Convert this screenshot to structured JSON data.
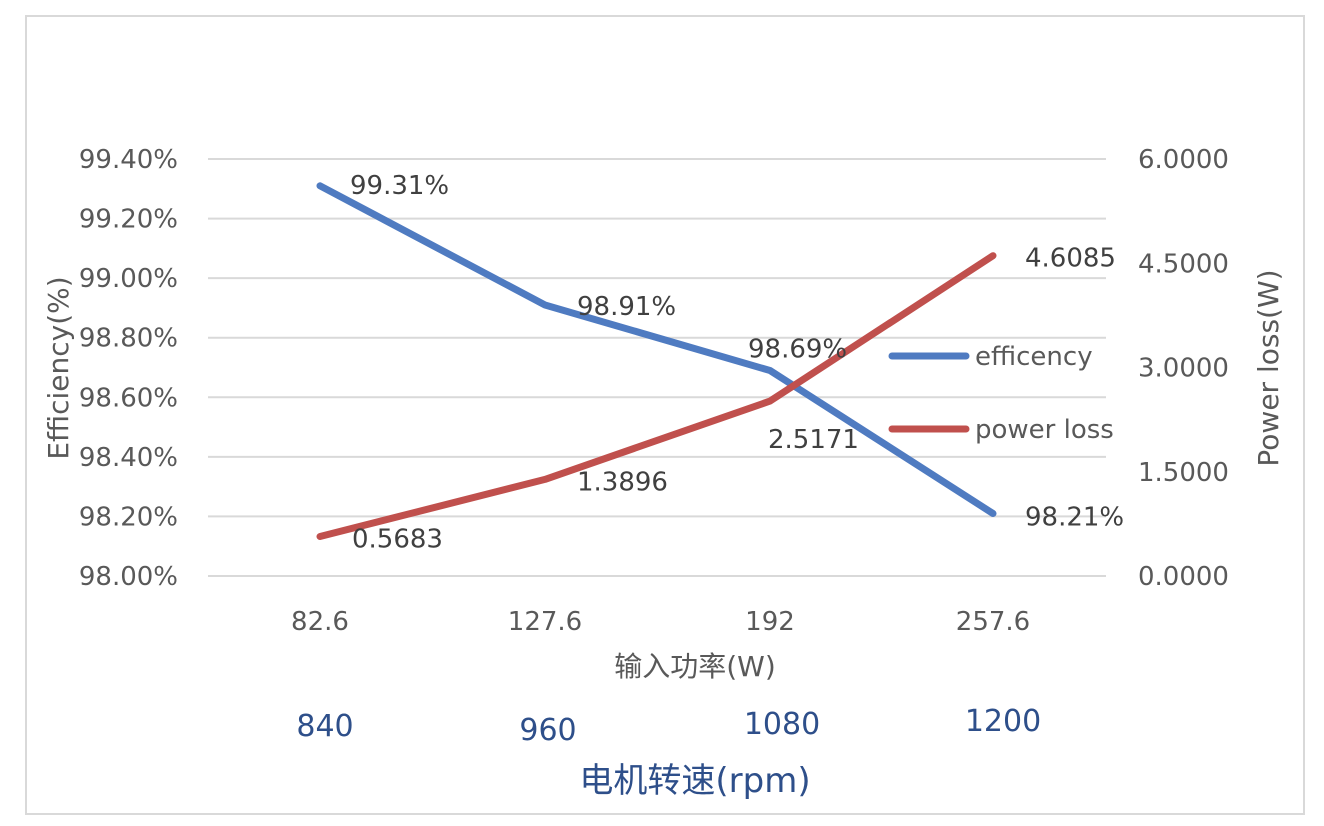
{
  "chart_data": {
    "type": "line",
    "categories": [
      "82.6",
      "127.6",
      "192",
      "257.6"
    ],
    "series": [
      {
        "name": "efficency",
        "axis": "left",
        "color": "#4f7bc1",
        "values": [
          99.31,
          98.91,
          98.69,
          98.21
        ],
        "labels": [
          "99.31%",
          "98.91%",
          "98.69%",
          "98.21%"
        ]
      },
      {
        "name": "power loss",
        "axis": "right",
        "color": "#c0504d",
        "values": [
          0.5683,
          1.3896,
          2.5171,
          4.6085
        ],
        "labels": [
          "0.5683",
          "1.3896",
          "2.5171",
          "4.6085"
        ]
      }
    ],
    "xlabel": "输入功率(W)",
    "ylabel_left": "Efficiency(%)",
    "ylabel_right": "Power loss(W)",
    "ylim_left": [
      98.0,
      99.4
    ],
    "ylim_right": [
      0,
      6
    ],
    "yticks_left": [
      "98.00%",
      "98.20%",
      "98.40%",
      "98.60%",
      "98.80%",
      "99.00%",
      "99.20%",
      "99.40%"
    ],
    "yticks_right": [
      "0.0000",
      "1.5000",
      "3.0000",
      "4.5000",
      "6.0000"
    ],
    "grid": true,
    "legend_position": "right",
    "secondary_x": {
      "title": "电机转速(rpm)",
      "ticks": [
        "840",
        "960",
        "1080",
        "1200"
      ],
      "color": "#2e4f8a"
    }
  }
}
